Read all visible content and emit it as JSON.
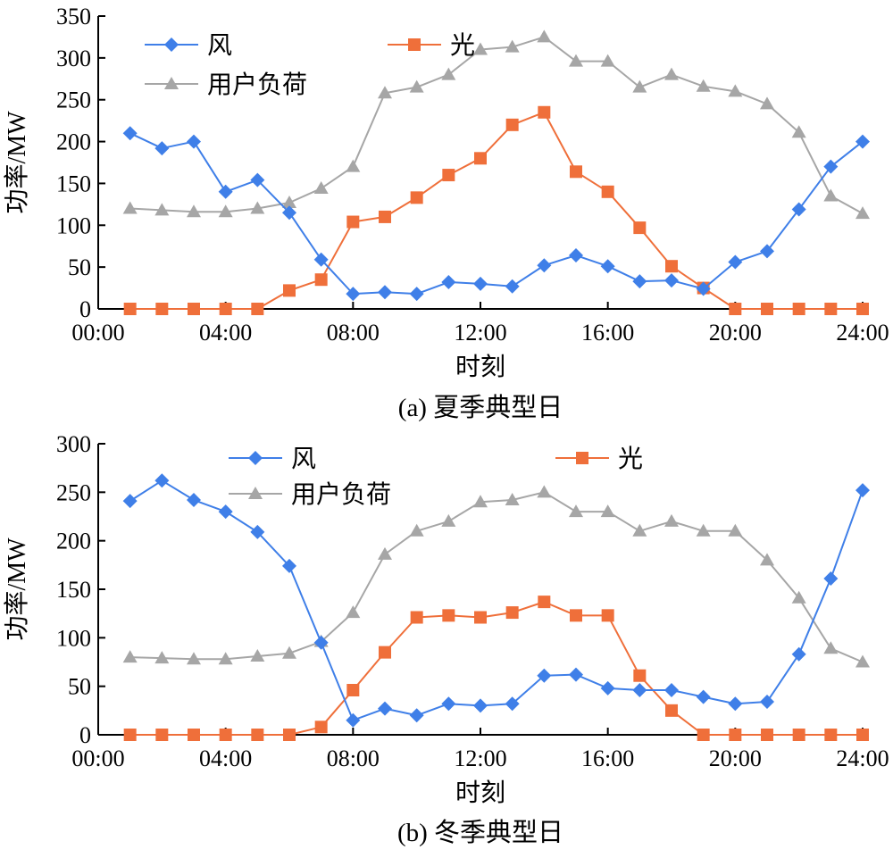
{
  "colors": {
    "wind": "#3f7fe8",
    "solar": "#ef6f3a",
    "load": "#a6a6a6",
    "axis": "#000000"
  },
  "chart_data": [
    {
      "type": "line",
      "caption": "(a) 夏季典型日",
      "xlabel": "时刻",
      "ylabel": "功率/MW",
      "x": [
        1,
        2,
        3,
        4,
        5,
        6,
        7,
        8,
        9,
        10,
        11,
        12,
        13,
        14,
        15,
        16,
        17,
        18,
        19,
        20,
        21,
        22,
        23,
        24
      ],
      "xlim": [
        0,
        24
      ],
      "ylim": [
        0,
        350
      ],
      "xticks": [
        {
          "value": 0,
          "label": "00:00"
        },
        {
          "value": 4,
          "label": "04:00"
        },
        {
          "value": 8,
          "label": "08:00"
        },
        {
          "value": 12,
          "label": "12:00"
        },
        {
          "value": 16,
          "label": "16:00"
        },
        {
          "value": 20,
          "label": "20:00"
        },
        {
          "value": 24,
          "label": "24:00"
        }
      ],
      "yticks": [
        0,
        50,
        100,
        150,
        200,
        250,
        300,
        350
      ],
      "legend_position": "top-left",
      "series": [
        {
          "name": "风",
          "marker": "diamond",
          "color": "wind",
          "values": [
            210,
            192,
            200,
            140,
            154,
            115,
            59,
            18,
            20,
            18,
            32,
            30,
            27,
            52,
            64,
            51,
            33,
            34,
            24,
            56,
            69,
            119,
            170,
            200
          ]
        },
        {
          "name": "光",
          "marker": "square",
          "color": "solar",
          "values": [
            0,
            0,
            0,
            0,
            0,
            22,
            35,
            104,
            110,
            133,
            160,
            180,
            220,
            235,
            164,
            140,
            97,
            51,
            25,
            0,
            0,
            0,
            0,
            0
          ]
        },
        {
          "name": "用户负荷",
          "marker": "triangle",
          "color": "load",
          "values": [
            120,
            118,
            116,
            116,
            120,
            127,
            144,
            170,
            258,
            265,
            280,
            310,
            313,
            325,
            296,
            296,
            265,
            280,
            266,
            260,
            245,
            211,
            135,
            114
          ]
        }
      ]
    },
    {
      "type": "line",
      "caption": "(b) 冬季典型日",
      "xlabel": "时刻",
      "ylabel": "功率/MW",
      "x": [
        1,
        2,
        3,
        4,
        5,
        6,
        7,
        8,
        9,
        10,
        11,
        12,
        13,
        14,
        15,
        16,
        17,
        18,
        19,
        20,
        21,
        22,
        23,
        24
      ],
      "xlim": [
        0,
        24
      ],
      "ylim": [
        0,
        300
      ],
      "xticks": [
        {
          "value": 0,
          "label": "00:00"
        },
        {
          "value": 4,
          "label": "04:00"
        },
        {
          "value": 8,
          "label": "08:00"
        },
        {
          "value": 12,
          "label": "12:00"
        },
        {
          "value": 16,
          "label": "16:00"
        },
        {
          "value": 20,
          "label": "20:00"
        },
        {
          "value": 24,
          "label": "24:00"
        }
      ],
      "yticks": [
        0,
        50,
        100,
        150,
        200,
        250,
        300
      ],
      "legend_position": "top-center",
      "series": [
        {
          "name": "风",
          "marker": "diamond",
          "color": "wind",
          "values": [
            241,
            262,
            242,
            230,
            209,
            174,
            95,
            15,
            27,
            20,
            32,
            30,
            32,
            61,
            62,
            48,
            46,
            46,
            39,
            32,
            34,
            83,
            161,
            252
          ]
        },
        {
          "name": "光",
          "marker": "square",
          "color": "solar",
          "values": [
            0,
            0,
            0,
            0,
            0,
            0,
            8,
            46,
            85,
            121,
            123,
            121,
            126,
            137,
            123,
            123,
            61,
            25,
            0,
            0,
            0,
            0,
            0,
            0
          ]
        },
        {
          "name": "用户负荷",
          "marker": "triangle",
          "color": "load",
          "values": [
            80,
            79,
            78,
            78,
            81,
            84,
            96,
            126,
            186,
            210,
            220,
            240,
            242,
            250,
            230,
            230,
            210,
            220,
            210,
            210,
            180,
            141,
            89,
            75
          ]
        }
      ]
    }
  ]
}
